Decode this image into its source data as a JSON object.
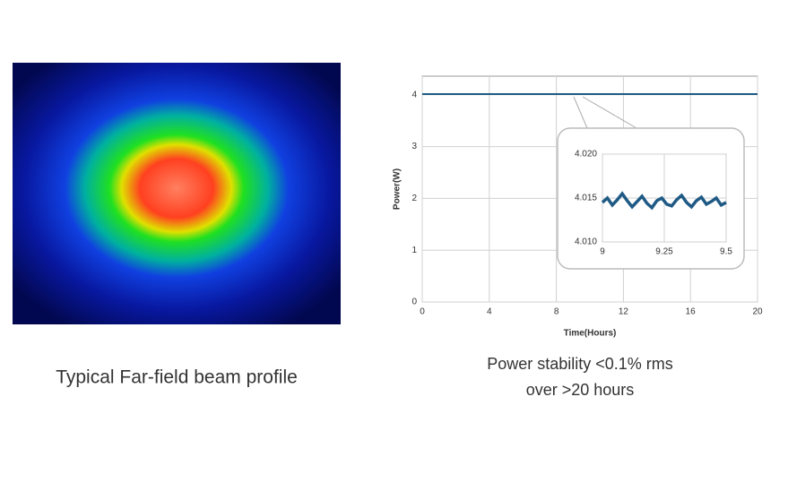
{
  "beam_profile": {
    "caption": "Typical Far-field beam profile"
  },
  "stability_caption": [
    "Power stability <0.1% rms",
    "over >20 hours"
  ],
  "chart_data": [
    {
      "type": "line",
      "xlabel": "Time(Hours)",
      "ylabel": "Power(W)",
      "xlim": [
        0,
        20
      ],
      "xticks": [
        0,
        4,
        8,
        12,
        16,
        20
      ],
      "ylim": [
        0,
        4.36
      ],
      "yticks": [
        0,
        1,
        2,
        3,
        4
      ],
      "grid": true,
      "x": [
        0,
        1,
        2,
        3,
        4,
        5,
        6,
        7,
        8,
        9,
        10,
        11,
        12,
        13,
        14,
        15,
        16,
        17,
        18,
        19,
        20
      ],
      "series": [
        {
          "color": "#1f5a85",
          "values": [
            4.015,
            4.015,
            4.015,
            4.015,
            4.015,
            4.015,
            4.015,
            4.015,
            4.015,
            4.015,
            4.015,
            4.015,
            4.015,
            4.015,
            4.015,
            4.015,
            4.015,
            4.015,
            4.015,
            4.015,
            4.015
          ]
        }
      ]
    },
    {
      "type": "line",
      "xlim": [
        9,
        9.5
      ],
      "xticks": [
        9,
        9.25,
        9.5
      ],
      "ylim": [
        4.01,
        4.02
      ],
      "yticks": [
        {
          "value": 4.01,
          "label": "4.010"
        },
        {
          "value": 4.015,
          "label": "4.015"
        },
        {
          "value": 4.02,
          "label": "4.020"
        }
      ],
      "grid": true,
      "x": [
        9,
        9.02,
        9.04,
        9.06,
        9.08,
        9.1,
        9.12,
        9.14,
        9.16,
        9.18,
        9.2,
        9.22,
        9.24,
        9.26,
        9.28,
        9.3,
        9.32,
        9.34,
        9.36,
        9.38,
        9.4,
        9.42,
        9.44,
        9.46,
        9.48,
        9.5
      ],
      "series": [
        {
          "color": "#1f5a85",
          "values": [
            4.0145,
            4.015,
            4.0142,
            4.0148,
            4.0155,
            4.0147,
            4.014,
            4.0146,
            4.0152,
            4.0144,
            4.0139,
            4.0147,
            4.015,
            4.0143,
            4.0141,
            4.0148,
            4.0153,
            4.0145,
            4.014,
            4.0147,
            4.0151,
            4.0143,
            4.0146,
            4.015,
            4.0142,
            4.0145
          ]
        }
      ]
    }
  ]
}
